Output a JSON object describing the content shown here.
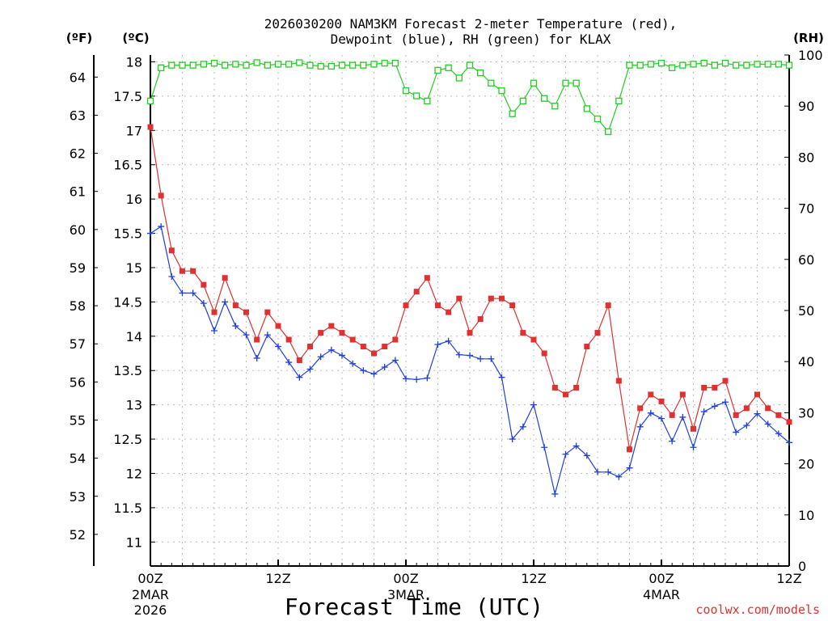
{
  "chart_data": {
    "type": "line",
    "title": "2026030200 NAM3KM Forecast 2-meter Temperature (red),",
    "subtitle": "Dewpoint (blue), RH (green) for KLAX",
    "xlabel": "Forecast Time (UTC)",
    "credit": "coolwx.com/models",
    "units": {
      "fahrenheit": "(ºF)",
      "celsius": "(ºC)",
      "rh": "(RH)"
    },
    "x_hours": [
      0,
      1,
      2,
      3,
      4,
      5,
      6,
      7,
      8,
      9,
      10,
      11,
      12,
      13,
      14,
      15,
      16,
      17,
      18,
      19,
      20,
      21,
      22,
      23,
      24,
      25,
      26,
      27,
      28,
      29,
      30,
      31,
      32,
      33,
      34,
      35,
      36,
      37,
      38,
      39,
      40,
      41,
      42,
      43,
      44,
      45,
      46,
      47,
      48,
      49,
      50,
      51,
      52,
      53,
      54,
      55,
      56,
      57,
      58,
      59,
      60
    ],
    "x_range_hours": [
      0,
      60
    ],
    "x_ticks": [
      {
        "hour": 0,
        "label": "00Z",
        "date": "2MAR",
        "year": "2026"
      },
      {
        "hour": 12,
        "label": "12Z",
        "date": "",
        "year": ""
      },
      {
        "hour": 24,
        "label": "00Z",
        "date": "3MAR",
        "year": ""
      },
      {
        "hour": 36,
        "label": "12Z",
        "date": "",
        "year": ""
      },
      {
        "hour": 48,
        "label": "00Z",
        "date": "4MAR",
        "year": ""
      },
      {
        "hour": 60,
        "label": "12Z",
        "date": "",
        "year": ""
      }
    ],
    "celsius_range": [
      10.65,
      18.1
    ],
    "celsius_ticks": [
      "11",
      "11.5",
      "12",
      "12.5",
      "13",
      "13.5",
      "14",
      "14.5",
      "15",
      "15.5",
      "16",
      "16.5",
      "17",
      "17.5",
      "18"
    ],
    "fahrenheit_ticks": [
      "52",
      "53",
      "54",
      "55",
      "56",
      "57",
      "58",
      "59",
      "60",
      "61",
      "62",
      "63",
      "64"
    ],
    "rh_range": [
      0,
      100
    ],
    "rh_ticks": [
      "0",
      "10",
      "20",
      "30",
      "40",
      "50",
      "60",
      "70",
      "80",
      "90",
      "100"
    ],
    "grid": true,
    "series": [
      {
        "name": "Temperature",
        "color": "#e03030",
        "marker": "filled-square",
        "axis": "celsius",
        "values": [
          17.05,
          16.05,
          15.25,
          14.95,
          14.95,
          14.75,
          14.35,
          14.85,
          14.45,
          14.35,
          13.95,
          14.35,
          14.15,
          13.95,
          13.65,
          13.85,
          14.05,
          14.15,
          14.05,
          13.95,
          13.85,
          13.75,
          13.85,
          13.95,
          14.45,
          14.65,
          14.85,
          14.45,
          14.35,
          14.55,
          14.05,
          14.25,
          14.55,
          14.55,
          14.45,
          14.05,
          13.95,
          13.75,
          13.25,
          13.15,
          13.25,
          13.85,
          14.05,
          14.45,
          13.35,
          12.35,
          12.95,
          13.15,
          13.05,
          12.85,
          13.15,
          12.65,
          13.25,
          13.25,
          13.35,
          12.85,
          12.95,
          13.15,
          12.95,
          12.85,
          12.75
        ]
      },
      {
        "name": "Dewpoint",
        "color": "#2040e0",
        "marker": "plus",
        "axis": "celsius",
        "values": [
          15.5,
          15.6,
          14.87,
          14.63,
          14.63,
          14.48,
          14.08,
          14.5,
          14.15,
          14.02,
          13.68,
          14.02,
          13.85,
          13.62,
          13.4,
          13.52,
          13.7,
          13.8,
          13.72,
          13.6,
          13.5,
          13.45,
          13.55,
          13.65,
          13.38,
          13.37,
          13.39,
          13.88,
          13.93,
          13.73,
          13.72,
          13.67,
          13.67,
          13.4,
          12.5,
          12.68,
          13.0,
          12.38,
          11.7,
          12.28,
          12.4,
          12.26,
          12.02,
          12.02,
          11.95,
          12.08,
          12.68,
          12.88,
          12.8,
          12.47,
          12.82,
          12.38,
          12.9,
          12.98,
          13.04,
          12.6,
          12.7,
          12.87,
          12.72,
          12.58,
          12.45
        ]
      },
      {
        "name": "RH",
        "color": "#20d020",
        "marker": "open-square",
        "axis": "rh",
        "values": [
          91,
          97.5,
          98,
          98,
          98,
          98.2,
          98.4,
          98,
          98.2,
          98,
          98.5,
          98,
          98.2,
          98.2,
          98.5,
          98,
          97.8,
          97.8,
          98,
          98,
          98,
          98.2,
          98.4,
          98.4,
          93,
          92,
          91,
          97,
          97.5,
          95.5,
          98,
          96.5,
          94.5,
          93,
          88.5,
          91,
          94.5,
          91.5,
          90,
          94.5,
          94.5,
          89.5,
          87.5,
          85,
          91,
          98,
          98,
          98.2,
          98.4,
          97.5,
          98,
          98.2,
          98.4,
          98,
          98.4,
          98,
          98,
          98.2,
          98.2,
          98.2,
          98
        ]
      }
    ]
  }
}
